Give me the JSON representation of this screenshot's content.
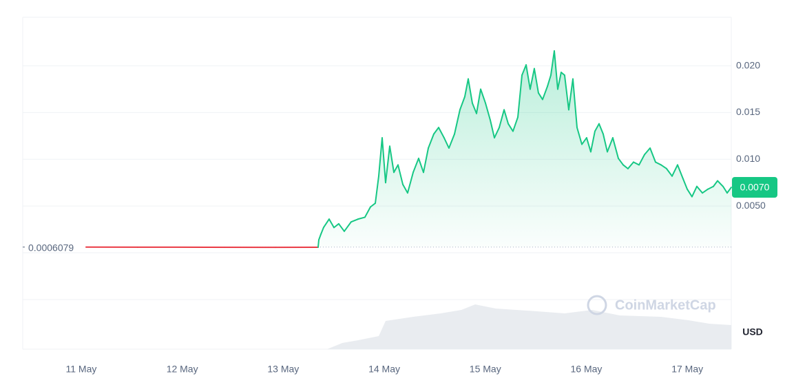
{
  "chart_data": {
    "type": "line",
    "currency": "USD",
    "watermark": "CoinMarketCap",
    "reference": {
      "value": 0.0006079,
      "label": "0.0006079"
    },
    "last_price": {
      "value": 0.007,
      "label": "0.0070"
    },
    "up_color": "#16c784",
    "down_color": "#ea3943",
    "xlim": [
      -0.579,
      6.435
    ],
    "xticks": [
      {
        "value": 0,
        "label": "11 May"
      },
      {
        "value": 1,
        "label": "12 May"
      },
      {
        "value": 2,
        "label": "13 May"
      },
      {
        "value": 3,
        "label": "14 May"
      },
      {
        "value": 4,
        "label": "15 May"
      },
      {
        "value": 5,
        "label": "16 May"
      },
      {
        "value": 6,
        "label": "17 May"
      }
    ],
    "ylim": [
      0,
      0.0252
    ],
    "yticks": [
      {
        "value": 0.005,
        "label": "0.0050"
      },
      {
        "value": 0.01,
        "label": "0.010"
      },
      {
        "value": 0.015,
        "label": "0.015"
      },
      {
        "value": 0.02,
        "label": "0.020"
      }
    ],
    "grid": true,
    "x": [
      0.048,
      0.559,
      1.241,
      1.922,
      2.345,
      2.352,
      2.372,
      2.399,
      2.454,
      2.502,
      2.549,
      2.604,
      2.672,
      2.74,
      2.808,
      2.863,
      2.911,
      2.945,
      2.979,
      3.013,
      3.054,
      3.095,
      3.136,
      3.184,
      3.231,
      3.286,
      3.34,
      3.388,
      3.436,
      3.49,
      3.538,
      3.592,
      3.64,
      3.695,
      3.749,
      3.797,
      3.831,
      3.872,
      3.913,
      3.954,
      4.002,
      4.049,
      4.09,
      4.138,
      4.186,
      4.227,
      4.274,
      4.322,
      4.363,
      4.404,
      4.444,
      4.485,
      4.526,
      4.567,
      4.615,
      4.649,
      4.683,
      4.717,
      4.751,
      4.785,
      4.826,
      4.867,
      4.908,
      4.956,
      5.003,
      5.044,
      5.085,
      5.126,
      5.167,
      5.208,
      5.262,
      5.317,
      5.365,
      5.412,
      5.467,
      5.522,
      5.576,
      5.631,
      5.685,
      5.74,
      5.794,
      5.849,
      5.903,
      5.958,
      5.999,
      6.046,
      6.094,
      6.149,
      6.203,
      6.258,
      6.299,
      6.353,
      6.394,
      6.435
    ],
    "values": [
      0.0006079,
      0.0006,
      0.00059,
      0.00058,
      0.00059,
      0.00138,
      0.00197,
      0.0027,
      0.0036,
      0.0027,
      0.0031,
      0.0023,
      0.0033,
      0.0036,
      0.0038,
      0.0049,
      0.0053,
      0.0082,
      0.0123,
      0.0075,
      0.0114,
      0.0086,
      0.0094,
      0.0073,
      0.0064,
      0.0086,
      0.0101,
      0.0086,
      0.0112,
      0.0127,
      0.0134,
      0.0123,
      0.0112,
      0.0127,
      0.0153,
      0.0167,
      0.0186,
      0.016,
      0.0149,
      0.0175,
      0.016,
      0.0142,
      0.0123,
      0.0134,
      0.0153,
      0.0138,
      0.013,
      0.0145,
      0.019,
      0.0201,
      0.0175,
      0.0197,
      0.0171,
      0.0164,
      0.0178,
      0.019,
      0.0216,
      0.0175,
      0.0193,
      0.019,
      0.0153,
      0.0186,
      0.0134,
      0.0116,
      0.0123,
      0.0108,
      0.013,
      0.0138,
      0.0127,
      0.0108,
      0.0123,
      0.0101,
      0.0094,
      0.009,
      0.0097,
      0.0094,
      0.0105,
      0.0112,
      0.0097,
      0.0094,
      0.009,
      0.0082,
      0.0094,
      0.0079,
      0.0068,
      0.006,
      0.0071,
      0.0064,
      0.0068,
      0.0071,
      0.0077,
      0.0071,
      0.0064,
      0.007
    ]
  }
}
